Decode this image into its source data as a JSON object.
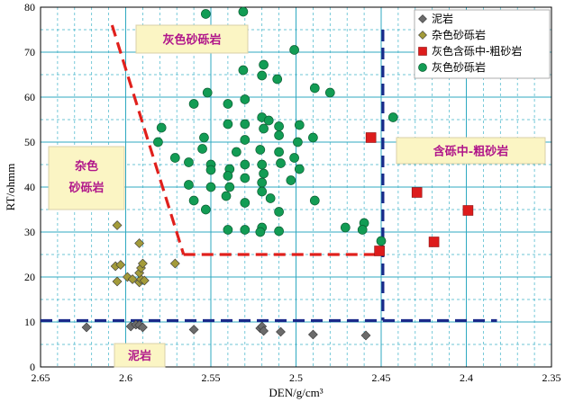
{
  "chart_data": {
    "type": "scatter",
    "xlabel": "DEN/g/cm³",
    "ylabel": "RT/ohmm",
    "xlim": [
      2.65,
      2.35
    ],
    "ylim": [
      0,
      80
    ],
    "x_reversed": true,
    "x_ticks": [
      "2.65",
      "2.6",
      "2.55",
      "2.5",
      "2.45",
      "2.4",
      "2.35"
    ],
    "y_ticks": [
      "0",
      "10",
      "20",
      "30",
      "40",
      "50",
      "60",
      "70",
      "80"
    ],
    "grid": true,
    "legend_position": "top-right",
    "series": [
      {
        "name": "泥岩",
        "marker": "diamond",
        "color": "#6b6b6b",
        "points": [
          [
            2.623,
            8.8
          ],
          [
            2.597,
            9.0
          ],
          [
            2.594,
            9.4
          ],
          [
            2.592,
            9.3
          ],
          [
            2.59,
            8.8
          ],
          [
            2.56,
            8.3
          ],
          [
            2.521,
            8.6
          ],
          [
            2.52,
            9.0
          ],
          [
            2.519,
            8.0
          ],
          [
            2.509,
            7.8
          ],
          [
            2.49,
            7.2
          ],
          [
            2.459,
            7.0
          ]
        ]
      },
      {
        "name": "杂色砂砾岩",
        "marker": "diamond",
        "color": "#a39b3a",
        "points": [
          [
            2.605,
            31.5
          ],
          [
            2.606,
            22.4
          ],
          [
            2.603,
            22.7
          ],
          [
            2.605,
            19.0
          ],
          [
            2.599,
            20.0
          ],
          [
            2.596,
            19.5
          ],
          [
            2.592,
            18.8
          ],
          [
            2.591,
            19.5
          ],
          [
            2.592,
            20.9
          ],
          [
            2.591,
            22.0
          ],
          [
            2.59,
            23.0
          ],
          [
            2.592,
            27.5
          ],
          [
            2.589,
            19.2
          ],
          [
            2.571,
            23.0
          ]
        ]
      },
      {
        "name": "灰色含砾中-粗砂岩",
        "marker": "square",
        "color": "#dd1c1c",
        "points": [
          [
            2.456,
            51.0
          ],
          [
            2.451,
            25.8
          ],
          [
            2.429,
            38.8
          ],
          [
            2.419,
            27.8
          ],
          [
            2.399,
            34.8
          ]
        ]
      },
      {
        "name": "灰色砂砾岩",
        "marker": "circle",
        "color": "#129c54",
        "points": [
          [
            2.553,
            78.5
          ],
          [
            2.531,
            79.0
          ],
          [
            2.501,
            70.5
          ],
          [
            2.519,
            67.2
          ],
          [
            2.531,
            66.0
          ],
          [
            2.52,
            64.8
          ],
          [
            2.511,
            64.0
          ],
          [
            2.489,
            62.0
          ],
          [
            2.48,
            61.0
          ],
          [
            2.552,
            61.0
          ],
          [
            2.53,
            59.5
          ],
          [
            2.56,
            58.5
          ],
          [
            2.54,
            58.5
          ],
          [
            2.52,
            55.5
          ],
          [
            2.54,
            54.0
          ],
          [
            2.53,
            54.0
          ],
          [
            2.516,
            54.8
          ],
          [
            2.51,
            53.5
          ],
          [
            2.519,
            53.0
          ],
          [
            2.498,
            53.8
          ],
          [
            2.579,
            53.2
          ],
          [
            2.51,
            51.5
          ],
          [
            2.49,
            51.0
          ],
          [
            2.554,
            51.0
          ],
          [
            2.53,
            50.5
          ],
          [
            2.499,
            50.0
          ],
          [
            2.581,
            50.0
          ],
          [
            2.555,
            48.5
          ],
          [
            2.521,
            48.3
          ],
          [
            2.535,
            47.8
          ],
          [
            2.51,
            47.8
          ],
          [
            2.571,
            46.5
          ],
          [
            2.501,
            46.5
          ],
          [
            2.55,
            45.0
          ],
          [
            2.53,
            45.0
          ],
          [
            2.52,
            45.0
          ],
          [
            2.509,
            45.3
          ],
          [
            2.563,
            45.5
          ],
          [
            2.539,
            44.0
          ],
          [
            2.55,
            43.8
          ],
          [
            2.519,
            43.0
          ],
          [
            2.498,
            44.0
          ],
          [
            2.54,
            42.5
          ],
          [
            2.53,
            42.0
          ],
          [
            2.52,
            41.0
          ],
          [
            2.503,
            41.5
          ],
          [
            2.563,
            40.5
          ],
          [
            2.55,
            40.0
          ],
          [
            2.539,
            40.0
          ],
          [
            2.52,
            39.0
          ],
          [
            2.541,
            38.0
          ],
          [
            2.56,
            37.0
          ],
          [
            2.53,
            36.5
          ],
          [
            2.515,
            37.5
          ],
          [
            2.489,
            37.0
          ],
          [
            2.553,
            35.0
          ],
          [
            2.51,
            34.5
          ],
          [
            2.53,
            30.5
          ],
          [
            2.54,
            30.5
          ],
          [
            2.52,
            31.0
          ],
          [
            2.521,
            30.0
          ],
          [
            2.51,
            30.2
          ],
          [
            2.471,
            31.0
          ],
          [
            2.46,
            32.0
          ],
          [
            2.461,
            30.5
          ],
          [
            2.45,
            28.0
          ],
          [
            2.443,
            55.5
          ]
        ]
      }
    ],
    "annotations": [
      {
        "text": "灰色砂砾岩"
      },
      {
        "text": "杂色砂砾岩"
      },
      {
        "text": "含砾中-粗砂岩"
      },
      {
        "text": "泥岩"
      }
    ],
    "boundary_lines": [
      {
        "from": [
          2.608,
          76
        ],
        "to": [
          2.566,
          25
        ]
      },
      {
        "from": [
          2.566,
          25
        ],
        "to": [
          2.449,
          25
        ]
      },
      {
        "from": [
          2.449,
          75
        ],
        "to": [
          2.449,
          10.3
        ]
      },
      {
        "from": [
          2.65,
          10.3
        ],
        "to": [
          2.382,
          10.3
        ]
      }
    ]
  }
}
